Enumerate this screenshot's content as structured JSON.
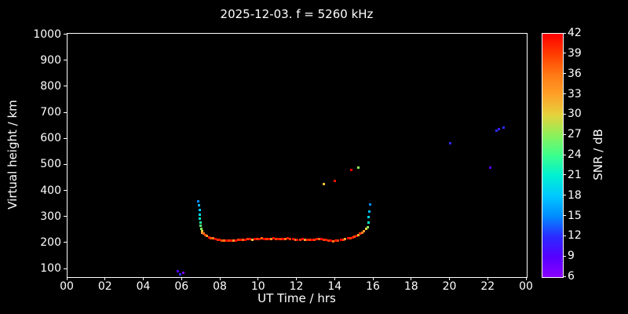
{
  "chart_data": {
    "type": "scatter",
    "title": "2025-12-03. f = 5260 kHz",
    "xlabel": "UT Time / hrs",
    "ylabel": "Virtual height / km",
    "xlim": [
      0,
      24
    ],
    "ylim": [
      70,
      1005
    ],
    "x_tick_hours": [
      0,
      2,
      4,
      6,
      8,
      10,
      12,
      14,
      16,
      18,
      20,
      22,
      24
    ],
    "x_tick_labels": [
      "00",
      "02",
      "04",
      "06",
      "08",
      "10",
      "12",
      "14",
      "16",
      "18",
      "20",
      "22",
      "00"
    ],
    "y_ticks": [
      100,
      200,
      300,
      400,
      500,
      600,
      700,
      800,
      900,
      1000
    ],
    "grid": false,
    "legend": "colorbar-right",
    "background": "#000000",
    "axis_color": "#ffffff",
    "colorbar": {
      "label": "SNR / dB",
      "min": 6,
      "max": 42,
      "ticks": [
        6,
        9,
        12,
        15,
        18,
        21,
        24,
        27,
        30,
        33,
        36,
        39,
        42
      ],
      "stops": [
        {
          "v": 6,
          "c": "#8b00ff"
        },
        {
          "v": 9,
          "c": "#5500ff"
        },
        {
          "v": 12,
          "c": "#2b2bff"
        },
        {
          "v": 15,
          "c": "#008cff"
        },
        {
          "v": 18,
          "c": "#00c8ff"
        },
        {
          "v": 21,
          "c": "#00f0d2"
        },
        {
          "v": 24,
          "c": "#3cff8c"
        },
        {
          "v": 27,
          "c": "#8cf05a"
        },
        {
          "v": 30,
          "c": "#e6d23c"
        },
        {
          "v": 33,
          "c": "#ffa028"
        },
        {
          "v": 36,
          "c": "#ff7814"
        },
        {
          "v": 39,
          "c": "#ff3c00"
        },
        {
          "v": 42,
          "c": "#ff0000"
        }
      ]
    },
    "points_format": [
      "ut_hours",
      "virtual_height_km",
      "snr_db"
    ],
    "points": [
      [
        5.75,
        92,
        9
      ],
      [
        5.9,
        80,
        12
      ],
      [
        6.05,
        86,
        7
      ],
      [
        6.85,
        362,
        15
      ],
      [
        6.87,
        345,
        17
      ],
      [
        6.9,
        328,
        18
      ],
      [
        6.9,
        310,
        20
      ],
      [
        6.92,
        295,
        21
      ],
      [
        6.95,
        280,
        23
      ],
      [
        6.97,
        268,
        25
      ],
      [
        7.0,
        256,
        27
      ],
      [
        7.02,
        246,
        30
      ],
      [
        7.05,
        240,
        33
      ],
      [
        7.1,
        236,
        36
      ],
      [
        7.2,
        231,
        39
      ],
      [
        7.3,
        227,
        34
      ],
      [
        7.4,
        223,
        41
      ],
      [
        7.5,
        220,
        38
      ],
      [
        7.6,
        218,
        36
      ],
      [
        7.72,
        216,
        42
      ],
      [
        7.85,
        214,
        39
      ],
      [
        7.95,
        212,
        41
      ],
      [
        8.05,
        211,
        38
      ],
      [
        8.18,
        210,
        36
      ],
      [
        8.3,
        209,
        42
      ],
      [
        8.42,
        210,
        39
      ],
      [
        8.55,
        209,
        41
      ],
      [
        8.68,
        210,
        34
      ],
      [
        8.8,
        211,
        42
      ],
      [
        8.92,
        212,
        39
      ],
      [
        9.05,
        213,
        41
      ],
      [
        9.18,
        212,
        37
      ],
      [
        9.3,
        214,
        42
      ],
      [
        9.42,
        215,
        39
      ],
      [
        9.55,
        216,
        41
      ],
      [
        9.65,
        214,
        31
      ],
      [
        9.78,
        215,
        42
      ],
      [
        9.9,
        216,
        39
      ],
      [
        10.02,
        217,
        41
      ],
      [
        10.15,
        218,
        37
      ],
      [
        10.28,
        216,
        42
      ],
      [
        10.4,
        215,
        39
      ],
      [
        10.52,
        216,
        41
      ],
      [
        10.65,
        217,
        34
      ],
      [
        10.78,
        218,
        42
      ],
      [
        10.9,
        217,
        39
      ],
      [
        11.02,
        216,
        41
      ],
      [
        11.15,
        215,
        39
      ],
      [
        11.28,
        216,
        42
      ],
      [
        11.4,
        217,
        36
      ],
      [
        11.52,
        218,
        41
      ],
      [
        11.65,
        216,
        39
      ],
      [
        11.78,
        215,
        42
      ],
      [
        11.9,
        214,
        36
      ],
      [
        12.02,
        213,
        41
      ],
      [
        12.15,
        214,
        39
      ],
      [
        12.28,
        215,
        42
      ],
      [
        12.4,
        214,
        33
      ],
      [
        12.52,
        213,
        41
      ],
      [
        12.65,
        212,
        39
      ],
      [
        12.78,
        213,
        42
      ],
      [
        12.9,
        214,
        39
      ],
      [
        13.02,
        215,
        41
      ],
      [
        13.15,
        216,
        37
      ],
      [
        13.28,
        215,
        42
      ],
      [
        13.4,
        214,
        39
      ],
      [
        13.52,
        212,
        41
      ],
      [
        13.65,
        210,
        39
      ],
      [
        13.78,
        209,
        42
      ],
      [
        13.9,
        208,
        36
      ],
      [
        14.02,
        209,
        41
      ],
      [
        14.15,
        210,
        39
      ],
      [
        14.28,
        212,
        42
      ],
      [
        14.4,
        214,
        39
      ],
      [
        14.52,
        216,
        33
      ],
      [
        14.65,
        218,
        42
      ],
      [
        14.78,
        220,
        39
      ],
      [
        14.9,
        223,
        41
      ],
      [
        15.0,
        226,
        38
      ],
      [
        15.1,
        229,
        42
      ],
      [
        15.2,
        232,
        31
      ],
      [
        15.3,
        236,
        39
      ],
      [
        15.4,
        241,
        36
      ],
      [
        15.5,
        247,
        33
      ],
      [
        15.6,
        254,
        30
      ],
      [
        15.68,
        262,
        27
      ],
      [
        15.72,
        280,
        21
      ],
      [
        15.75,
        300,
        19
      ],
      [
        15.78,
        322,
        17
      ],
      [
        15.8,
        350,
        15
      ],
      [
        13.4,
        428,
        31
      ],
      [
        13.95,
        438,
        41
      ],
      [
        14.85,
        482,
        42
      ],
      [
        15.2,
        492,
        27
      ],
      [
        20.0,
        585,
        12
      ],
      [
        22.1,
        490,
        9
      ],
      [
        22.4,
        633,
        12
      ],
      [
        22.55,
        640,
        11
      ],
      [
        22.8,
        646,
        12
      ]
    ]
  }
}
